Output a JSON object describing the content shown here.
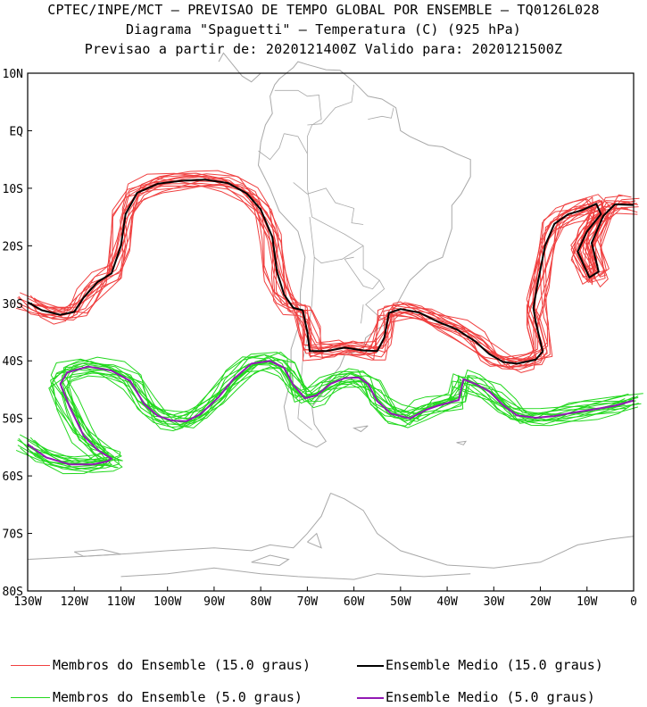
{
  "header": {
    "line1": "CPTEC/INPE/MCT – PREVISAO DE TEMPO GLOBAL POR ENSEMBLE – TQ0126L028",
    "line2": "Diagrama \"Spaguetti\" – Temperatura (C) (925 hPa)",
    "line3": "Previsao a partir de: 2020121400Z  Valido para: 2020121500Z"
  },
  "chart_data": {
    "type": "line",
    "title": "Diagrama \"Spaguetti\" – Temperatura (C) (925 hPa)",
    "xlim": [
      -130,
      0
    ],
    "ylim": [
      -80,
      10
    ],
    "x_ticks": [
      {
        "value": -130,
        "label": "130W"
      },
      {
        "value": -120,
        "label": "120W"
      },
      {
        "value": -110,
        "label": "110W"
      },
      {
        "value": -100,
        "label": "100W"
      },
      {
        "value": -90,
        "label": "90W"
      },
      {
        "value": -80,
        "label": "80W"
      },
      {
        "value": -70,
        "label": "70W"
      },
      {
        "value": -60,
        "label": "60W"
      },
      {
        "value": -50,
        "label": "50W"
      },
      {
        "value": -40,
        "label": "40W"
      },
      {
        "value": -30,
        "label": "30W"
      },
      {
        "value": -20,
        "label": "20W"
      },
      {
        "value": -10,
        "label": "10W"
      },
      {
        "value": 0,
        "label": "0"
      }
    ],
    "y_ticks": [
      {
        "value": 10,
        "label": "10N"
      },
      {
        "value": 0,
        "label": "EQ"
      },
      {
        "value": -10,
        "label": "10S"
      },
      {
        "value": -20,
        "label": "20S"
      },
      {
        "value": -30,
        "label": "30S"
      },
      {
        "value": -40,
        "label": "40S"
      },
      {
        "value": -50,
        "label": "50S"
      },
      {
        "value": -60,
        "label": "60S"
      },
      {
        "value": -70,
        "label": "70S"
      },
      {
        "value": -80,
        "label": "80S"
      }
    ],
    "colors": {
      "members_15": "#f04040",
      "mean_15": "#000000",
      "members_5": "#22d81e",
      "mean_5": "#9218b4",
      "coast": "#a8a8a8"
    },
    "member_count": 15,
    "series": [
      {
        "name": "Ensemble Medio (15.0 graus)",
        "points": [
          [
            -130,
            -29.8
          ],
          [
            -127,
            -31.2
          ],
          [
            -123,
            -32
          ],
          [
            -120,
            -31.5
          ],
          [
            -118,
            -29
          ],
          [
            -115,
            -26.3
          ],
          [
            -112,
            -24.8
          ],
          [
            -110,
            -20
          ],
          [
            -109,
            -14.5
          ],
          [
            -106.5,
            -10.8
          ],
          [
            -102,
            -9.2
          ],
          [
            -97,
            -8.7
          ],
          [
            -92,
            -8.5
          ],
          [
            -87,
            -9.1
          ],
          [
            -83,
            -10.9
          ],
          [
            -80,
            -13.7
          ],
          [
            -77.5,
            -18.5
          ],
          [
            -76.5,
            -24.5
          ],
          [
            -75,
            -28.5
          ],
          [
            -73,
            -30.8
          ],
          [
            -71,
            -31.2
          ],
          [
            -70,
            -35
          ],
          [
            -69.5,
            -38.3
          ],
          [
            -66,
            -38.3
          ],
          [
            -62,
            -37.7
          ],
          [
            -58,
            -38.2
          ],
          [
            -55,
            -38.3
          ],
          [
            -53.5,
            -36
          ],
          [
            -52.5,
            -31.7
          ],
          [
            -50,
            -31
          ],
          [
            -46,
            -31.6
          ],
          [
            -42,
            -33.2
          ],
          [
            -38,
            -34.5
          ],
          [
            -34,
            -36.6
          ],
          [
            -31,
            -38.8
          ],
          [
            -28,
            -40.2
          ],
          [
            -25,
            -40.5
          ],
          [
            -21,
            -39.8
          ],
          [
            -19.5,
            -38.4
          ],
          [
            -21,
            -33.2
          ],
          [
            -21.5,
            -30.8
          ],
          [
            -20.5,
            -26.2
          ],
          [
            -19,
            -20
          ],
          [
            -17,
            -16.2
          ],
          [
            -14,
            -14.5
          ],
          [
            -11,
            -13.8
          ],
          [
            -8,
            -12.7
          ],
          [
            -7,
            -14.5
          ],
          [
            -10,
            -17.5
          ],
          [
            -12,
            -21
          ],
          [
            -9.5,
            -25.5
          ],
          [
            -7.5,
            -24.5
          ],
          [
            -9,
            -19.5
          ],
          [
            -6.5,
            -14.8
          ],
          [
            -4,
            -12.8
          ],
          [
            0,
            -12.9
          ]
        ]
      },
      {
        "name": "Ensemble Medio (5.0 graus)",
        "points": [
          [
            -130,
            -54.5
          ],
          [
            -126,
            -56.8
          ],
          [
            -121,
            -58
          ],
          [
            -116,
            -58
          ],
          [
            -113,
            -57.5
          ],
          [
            -112,
            -57
          ],
          [
            -115,
            -55.5
          ],
          [
            -118,
            -53
          ],
          [
            -121,
            -48
          ],
          [
            -123,
            -44
          ],
          [
            -121.5,
            -42
          ],
          [
            -117,
            -41
          ],
          [
            -112,
            -41.7
          ],
          [
            -108,
            -43.5
          ],
          [
            -105,
            -47.5
          ],
          [
            -102,
            -49.6
          ],
          [
            -99,
            -50.4
          ],
          [
            -96,
            -50.5
          ],
          [
            -93,
            -49.3
          ],
          [
            -89,
            -46.3
          ],
          [
            -86,
            -43.3
          ],
          [
            -82,
            -40.5
          ],
          [
            -78,
            -40
          ],
          [
            -75,
            -41.2
          ],
          [
            -73,
            -44.2
          ],
          [
            -70.5,
            -46.5
          ],
          [
            -68,
            -46
          ],
          [
            -65,
            -44
          ],
          [
            -62,
            -43
          ],
          [
            -59,
            -42.9
          ],
          [
            -57,
            -44
          ],
          [
            -55,
            -47
          ],
          [
            -52,
            -49.2
          ],
          [
            -48,
            -50
          ],
          [
            -44.5,
            -48.5
          ],
          [
            -42,
            -47.8
          ],
          [
            -37.5,
            -46.8
          ],
          [
            -36.5,
            -43.2
          ],
          [
            -34,
            -44
          ],
          [
            -31,
            -45.3
          ],
          [
            -28,
            -47.7
          ],
          [
            -25,
            -49.5
          ],
          [
            -21,
            -49.9
          ],
          [
            -17,
            -49.6
          ],
          [
            -13,
            -49
          ],
          [
            -9,
            -48.5
          ],
          [
            -4,
            -47.8
          ],
          [
            0,
            -46.9
          ]
        ]
      }
    ]
  },
  "legend": {
    "items": [
      {
        "label": "Membros do Ensemble (15.0 graus)",
        "color": "#f04040",
        "weight": 1
      },
      {
        "label": "Ensemble Medio (15.0 graus)",
        "color": "#000000",
        "weight": 2
      },
      {
        "label": "Membros do Ensemble (5.0 graus)",
        "color": "#22d81e",
        "weight": 1
      },
      {
        "label": "Ensemble Medio (5.0 graus)",
        "color": "#9218b4",
        "weight": 2
      }
    ]
  }
}
